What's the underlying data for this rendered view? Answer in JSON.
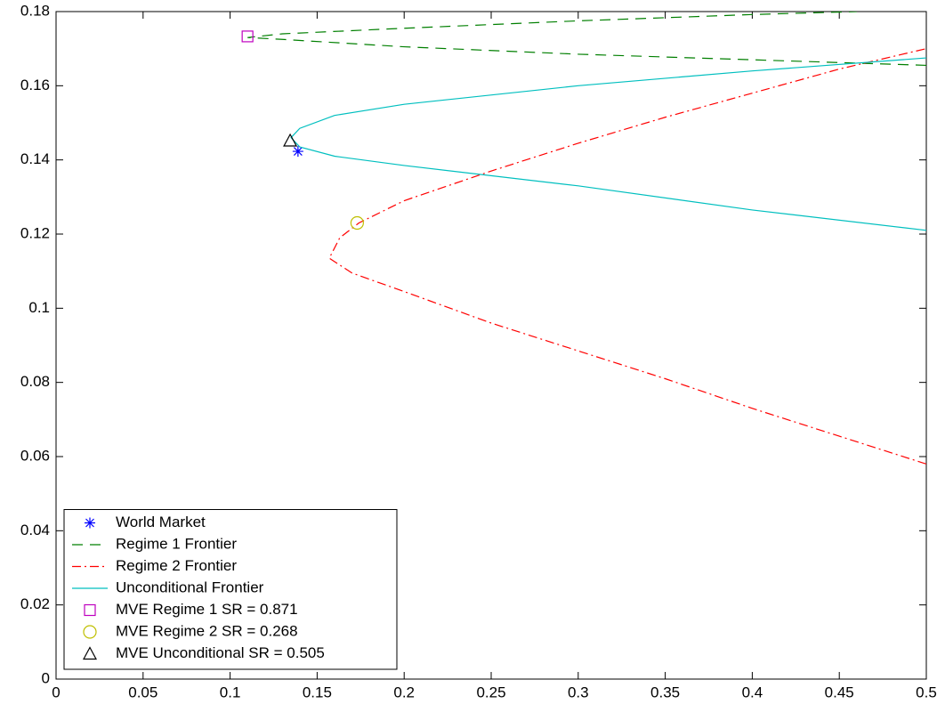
{
  "chart_data": {
    "type": "line",
    "xlim": [
      0,
      0.5
    ],
    "ylim": [
      0,
      0.18
    ],
    "xticks": [
      0,
      0.05,
      0.1,
      0.15,
      0.2,
      0.25,
      0.3,
      0.35,
      0.4,
      0.45,
      0.5
    ],
    "yticks": [
      0,
      0.02,
      0.04,
      0.06,
      0.08,
      0.1,
      0.12,
      0.14,
      0.16,
      0.18
    ],
    "legend": "lower left",
    "series": [
      {
        "name": "World Market",
        "color": "#0000ff",
        "marker": "asterisk",
        "x": [
          0.139
        ],
        "y": [
          0.1423
        ]
      },
      {
        "name": "Regime 1 Frontier",
        "color": "#007f00",
        "line": "dashed",
        "x": [
          0.5,
          0.4,
          0.3,
          0.2,
          0.13,
          0.11,
          0.13,
          0.2,
          0.3,
          0.4,
          0.46
        ],
        "y": [
          0.1655,
          0.167,
          0.1685,
          0.1705,
          0.1725,
          0.173,
          0.174,
          0.1755,
          0.1775,
          0.1792,
          0.18
        ]
      },
      {
        "name": "Regime 2 Frontier",
        "color": "#ff0000",
        "line": "dashdot",
        "x": [
          0.5,
          0.45,
          0.4,
          0.35,
          0.3,
          0.25,
          0.2,
          0.17,
          0.157,
          0.163,
          0.174,
          0.2,
          0.25,
          0.3,
          0.35,
          0.4,
          0.45,
          0.5
        ],
        "y": [
          0.058,
          0.0655,
          0.073,
          0.081,
          0.0885,
          0.096,
          0.1045,
          0.1095,
          0.1135,
          0.119,
          0.123,
          0.129,
          0.137,
          0.1445,
          0.1515,
          0.158,
          0.1645,
          0.17
        ]
      },
      {
        "name": "Unconditional Frontier",
        "color": "#00bfbf",
        "line": "solid",
        "x": [
          0.5,
          0.4,
          0.3,
          0.2,
          0.16,
          0.14,
          0.135,
          0.14,
          0.16,
          0.2,
          0.3,
          0.4,
          0.5
        ],
        "y": [
          0.121,
          0.1265,
          0.133,
          0.1385,
          0.141,
          0.1435,
          0.146,
          0.1485,
          0.152,
          0.155,
          0.16,
          0.164,
          0.1675
        ]
      },
      {
        "name": "MVE Regime 1 SR = 0.871",
        "color": "#bf00bf",
        "marker": "square",
        "x": [
          0.11
        ],
        "y": [
          0.1733
        ]
      },
      {
        "name": "MVE Regime 2 SR = 0.268",
        "color": "#bfbf00",
        "marker": "circle",
        "x": [
          0.173
        ],
        "y": [
          0.123
        ]
      },
      {
        "name": "MVE Unconditional SR = 0.505",
        "color": "#000000",
        "marker": "triangle",
        "x": [
          0.1345
        ],
        "y": [
          0.1452
        ]
      }
    ]
  }
}
